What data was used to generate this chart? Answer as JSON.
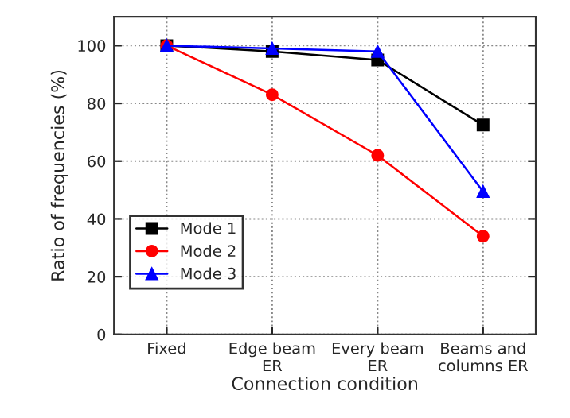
{
  "chart_data": {
    "type": "line",
    "xlabel": "Connection condition",
    "ylabel": "Ratio of frequencies (%)",
    "categories": [
      "Fixed",
      "Edge beam\nER",
      "Every beam\nER",
      "Beams and\ncolumns ER"
    ],
    "series": [
      {
        "name": "Mode 1",
        "color": "#000000",
        "marker": "square",
        "values": [
          100,
          98,
          95,
          72.5
        ]
      },
      {
        "name": "Mode 2",
        "color": "#ff0000",
        "marker": "circle",
        "values": [
          100,
          83,
          62,
          34
        ]
      },
      {
        "name": "Mode 3",
        "color": "#0000ff",
        "marker": "triangle",
        "values": [
          100,
          99,
          98,
          49.5
        ]
      }
    ],
    "ylim": [
      0,
      110
    ],
    "yticks": [
      0,
      20,
      40,
      60,
      80,
      100
    ],
    "grid": true,
    "legend": "bottom left",
    "line_style": "solid"
  }
}
